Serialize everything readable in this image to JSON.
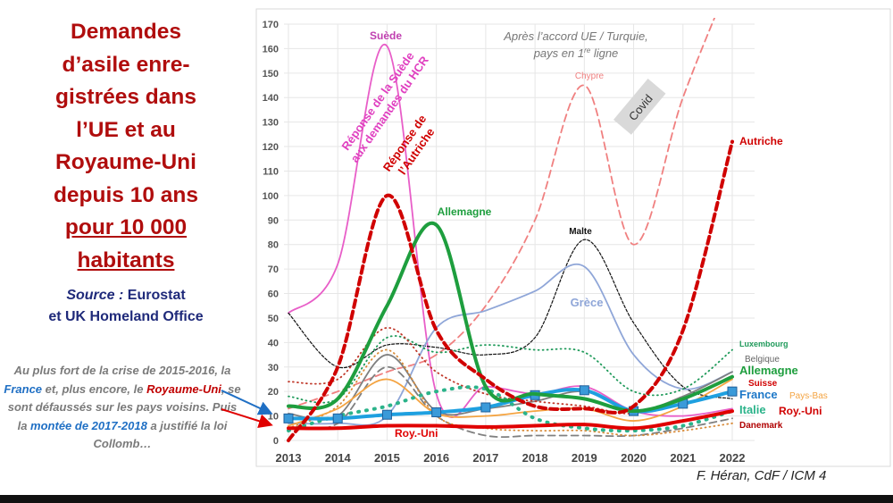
{
  "title": {
    "lines": [
      "Demandes",
      "d’asile enre-",
      "gistrées dans",
      "l’UE et au",
      "Royaume-Uni",
      "depuis 10 ans"
    ],
    "underlined": [
      "pour 10 000",
      "habitants"
    ]
  },
  "source": {
    "label": "Source :",
    "line1": " Eurostat",
    "line2": "et UK Homeland Office"
  },
  "note": {
    "p1": "Au plus fort de  la crise de 2015-2016, la ",
    "france": "France",
    "p2": " et, plus encore, le ",
    "uk": "Royaume-Uni",
    "p3": ", se sont défaussés sur les pays voisins. Puis la ",
    "rise": "montée de 2017-2018",
    "p4": " a justifié la loi Collomb…"
  },
  "credit": "F. Héran, CdF / ICM  4",
  "annotations": {
    "turkey1": "Après l’accord UE / Turquie,",
    "turkey2a": "pays en 1",
    "turkey2sup": "re",
    "turkey2b": " ligne",
    "sweden1": "Réponse de la Suède",
    "sweden2": "aux demandes du HCR",
    "austria1": "Réponse de",
    "austria2": "l’Autriche",
    "covid": "Covid"
  },
  "chart_data": {
    "type": "line",
    "x": [
      2013,
      2014,
      2015,
      2016,
      2017,
      2018,
      2019,
      2020,
      2021,
      2022
    ],
    "xlabel": "",
    "ylabel": "",
    "ylim": [
      0,
      170
    ],
    "yticks": [
      0,
      10,
      20,
      30,
      40,
      50,
      60,
      70,
      80,
      90,
      100,
      110,
      120,
      130,
      140,
      150,
      160,
      170
    ],
    "grid": true,
    "series": [
      {
        "name": "Chypre",
        "color": "#f08080",
        "style": "dashed",
        "values": [
          13,
          20,
          28,
          35,
          55,
          90,
          145,
          80,
          140,
          190
        ]
      },
      {
        "name": "Suède",
        "color": "#e85ec8",
        "style": "solid",
        "values": [
          52,
          72,
          161,
          19,
          22,
          19,
          22,
          12,
          10,
          13
        ]
      },
      {
        "name": "Malte",
        "color": "#111111",
        "style": "dashed-thin",
        "values": [
          52,
          30,
          39,
          38,
          35,
          42,
          82,
          48,
          22,
          17
        ]
      },
      {
        "name": "Grèce",
        "color": "#8fa6d8",
        "style": "solid",
        "values": [
          7,
          7,
          10,
          46,
          53,
          61,
          71,
          35,
          21,
          28
        ]
      },
      {
        "name": "Luxembourg",
        "color": "#1f9a5a",
        "style": "dotted",
        "values": [
          18,
          17,
          42,
          36,
          39,
          37,
          36,
          20,
          21,
          37
        ]
      },
      {
        "name": "Belgique",
        "color": "#7f7f7f",
        "style": "solid",
        "values": [
          11,
          10,
          35,
          12,
          13,
          16,
          20,
          12,
          18,
          28
        ]
      },
      {
        "name": "Suisse",
        "color": "#c0392b",
        "style": "dotted",
        "values": [
          24,
          25,
          46,
          28,
          19,
          16,
          14,
          11,
          17,
          26
        ]
      },
      {
        "name": "Danemark",
        "color": "#808080",
        "style": "dashed",
        "values": [
          5,
          7,
          30,
          10,
          2,
          2,
          2,
          2,
          5,
          9
        ]
      },
      {
        "name": "",
        "color": "#d98c3a",
        "style": "dotted",
        "values": [
          5,
          14,
          37,
          10,
          5,
          4,
          4,
          2,
          4,
          7
        ]
      },
      {
        "name": "Pays-Bas",
        "color": "#f4a442",
        "style": "solid",
        "values": [
          6,
          13,
          25,
          11,
          10,
          12,
          13,
          8,
          14,
          25
        ]
      },
      {
        "name": "Italie",
        "color": "#2bb38a",
        "style": "dotted-thick",
        "values": [
          4,
          10,
          14,
          20,
          21,
          9,
          5,
          4,
          6,
          12
        ]
      },
      {
        "name": "Roy.-Uni",
        "color": "#e00000",
        "style": "solid-thick",
        "values": [
          5,
          5,
          6,
          6,
          5.5,
          6,
          6.5,
          5,
          8,
          12
        ]
      },
      {
        "name": "France",
        "color": "#1ea0e0",
        "style": "solid-thick-markers",
        "values": [
          9,
          9,
          10.5,
          11.5,
          13.5,
          18.5,
          20.5,
          12,
          15,
          20
        ]
      },
      {
        "name": "Allemagne",
        "color": "#1e9e3e",
        "style": "solid-thick",
        "values": [
          14,
          17,
          55,
          88,
          22,
          19,
          17,
          12,
          17,
          26
        ]
      },
      {
        "name": "Autriche",
        "color": "#d00000",
        "style": "dashed-thick",
        "values": [
          0,
          30,
          100,
          45,
          25,
          14,
          13,
          14,
          45,
          122
        ]
      }
    ]
  }
}
